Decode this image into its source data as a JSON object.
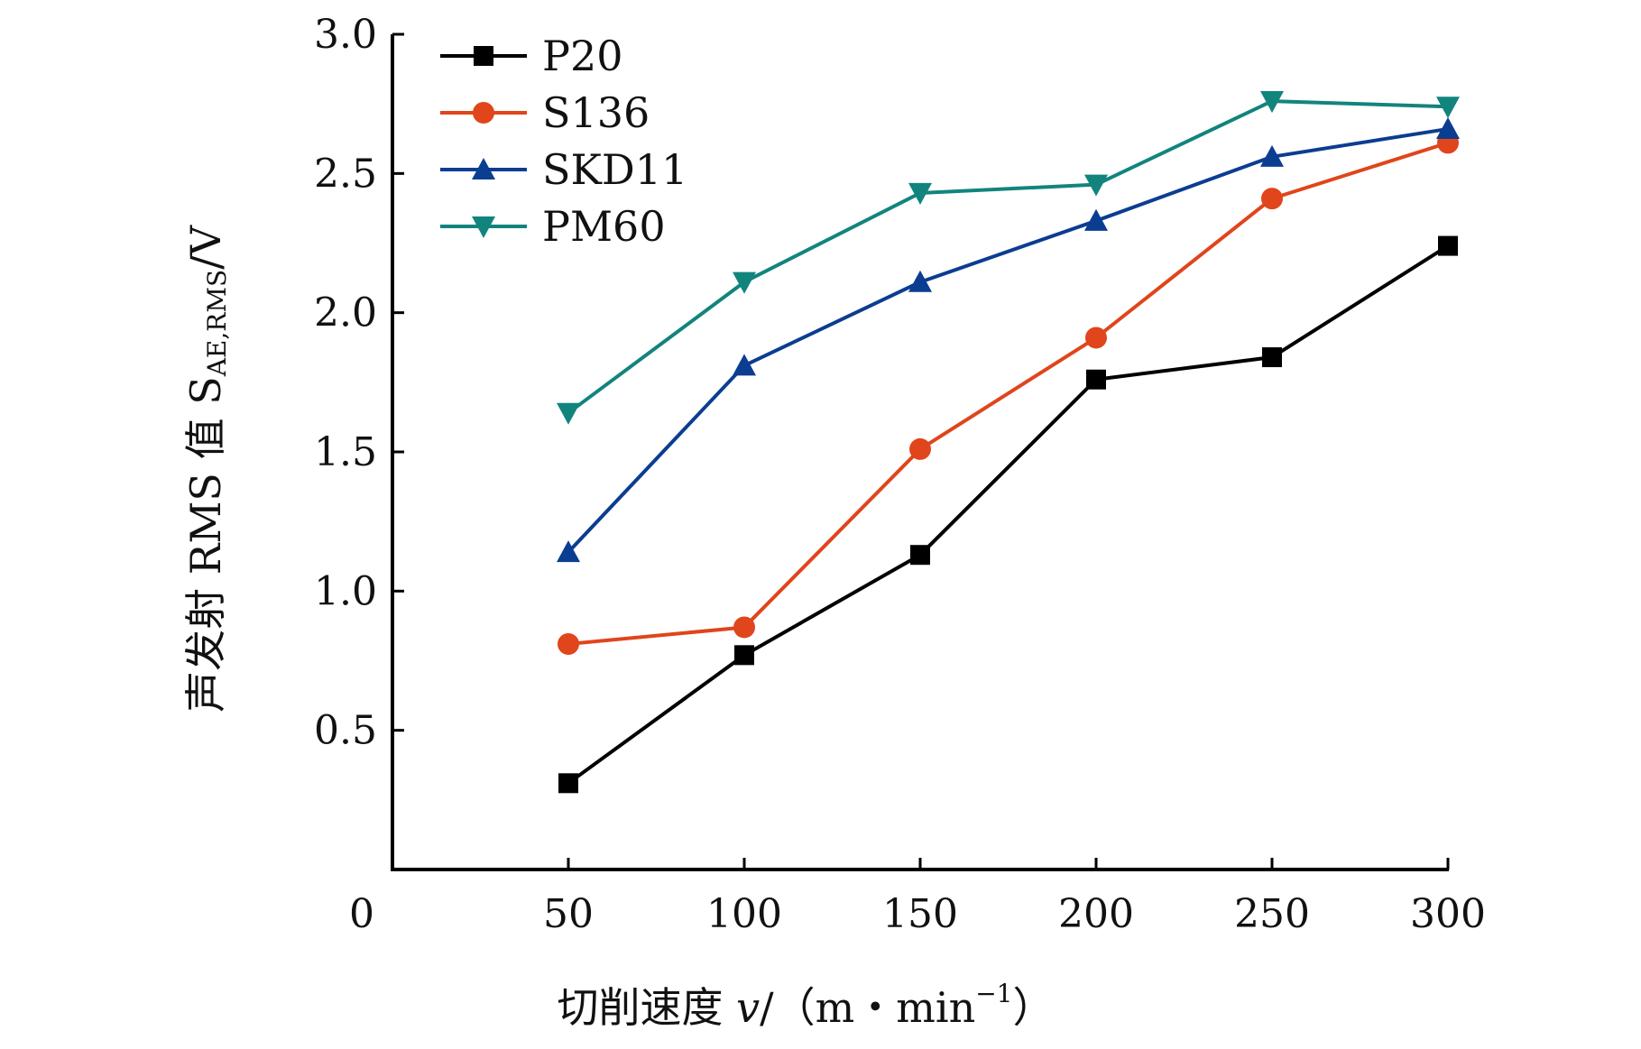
{
  "chart_data": {
    "type": "line",
    "x": [
      50,
      100,
      150,
      200,
      250,
      300
    ],
    "series": [
      {
        "name": "P20",
        "color": "#000000",
        "marker": "square",
        "values": [
          0.31,
          0.77,
          1.13,
          1.76,
          1.84,
          2.24
        ]
      },
      {
        "name": "S136",
        "color": "#e0451b",
        "marker": "circle",
        "values": [
          0.81,
          0.87,
          1.51,
          1.91,
          2.41,
          2.61
        ]
      },
      {
        "name": "SKD11",
        "color": "#0b3d91",
        "marker": "triangle-up",
        "values": [
          1.14,
          1.81,
          2.11,
          2.33,
          2.56,
          2.66
        ]
      },
      {
        "name": "PM60",
        "color": "#12847e",
        "marker": "triangle-down",
        "values": [
          1.64,
          2.11,
          2.43,
          2.46,
          2.76,
          2.74
        ]
      }
    ],
    "xlim": [
      0,
      300
    ],
    "ylim": [
      0,
      3.0
    ],
    "x_ticks": [
      "0",
      "50",
      "100",
      "150",
      "200",
      "250",
      "300"
    ],
    "y_ticks": [
      "0.5",
      "1.0",
      "1.5",
      "2.0",
      "2.5",
      "3.0"
    ],
    "xlabel": {
      "main": "切削速度 ",
      "var": "v",
      "unit_open": "/（m・min",
      "sup": "−1",
      "unit_close": "）"
    },
    "ylabel": {
      "main": "声发射 RMS 值 S",
      "sub": "AE,RMS",
      "unit": "/V"
    },
    "legend": "top-left",
    "grid": false
  }
}
